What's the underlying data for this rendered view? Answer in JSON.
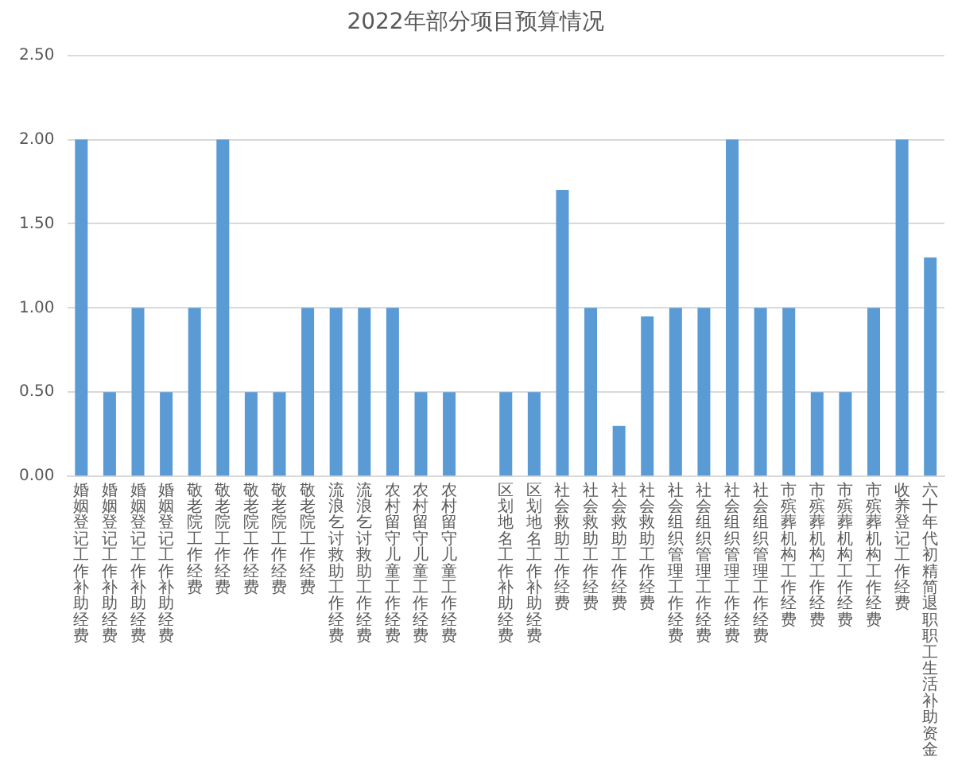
{
  "chart_data": {
    "type": "bar",
    "title": "2022年部分项目预算情况",
    "categories": [
      "婚姻登记工作补助经费",
      "婚姻登记工作补助经费",
      "婚姻登记工作补助经费",
      "婚姻登记工作补助经费",
      "敬老院工作经费",
      "敬老院工作经费",
      "敬老院工作经费",
      "敬老院工作经费",
      "敬老院工作经费",
      "流浪乞讨救助工作经费",
      "流浪乞讨救助工作经费",
      "农村留守儿童工作经费",
      "农村留守儿童工作经费",
      "农村留守儿童工作经费",
      null,
      "区划地名工作补助经费",
      "区划地名工作补助经费",
      "社会救助工作经费",
      "社会救助工作经费",
      "社会救助工作经费",
      "社会救助工作经费",
      "社会组织管理工作经费",
      "社会组织管理工作经费",
      "社会组织管理工作经费",
      "社会组织管理工作经费",
      "市殡葬机构工作经费",
      "市殡葬机构工作经费",
      "市殡葬机构工作经费",
      "市殡葬机构工作经费",
      "收养登记工作经费",
      "六十年代初精简退职职工生活补助资金"
    ],
    "values": [
      2,
      0.5,
      1,
      0.5,
      1,
      2,
      0.5,
      0.5,
      1,
      1,
      1,
      1,
      0.5,
      0.5,
      null,
      0.5,
      0.5,
      1.7,
      1,
      0.3,
      0.95,
      1,
      1,
      2,
      1,
      1,
      0.5,
      0.5,
      1,
      2,
      1.3
    ],
    "color": "#5b9bd5",
    "ylim": [
      0,
      2.5
    ],
    "yticks": [
      {
        "value": 0,
        "label": "0.00"
      },
      {
        "value": 0.5,
        "label": "0.50"
      },
      {
        "value": 1,
        "label": "1.00"
      },
      {
        "value": 1.5,
        "label": "1.50"
      },
      {
        "value": 2,
        "label": "2.00"
      },
      {
        "value": 2.5,
        "label": "2.50"
      }
    ],
    "grid": "y",
    "legend": false
  }
}
